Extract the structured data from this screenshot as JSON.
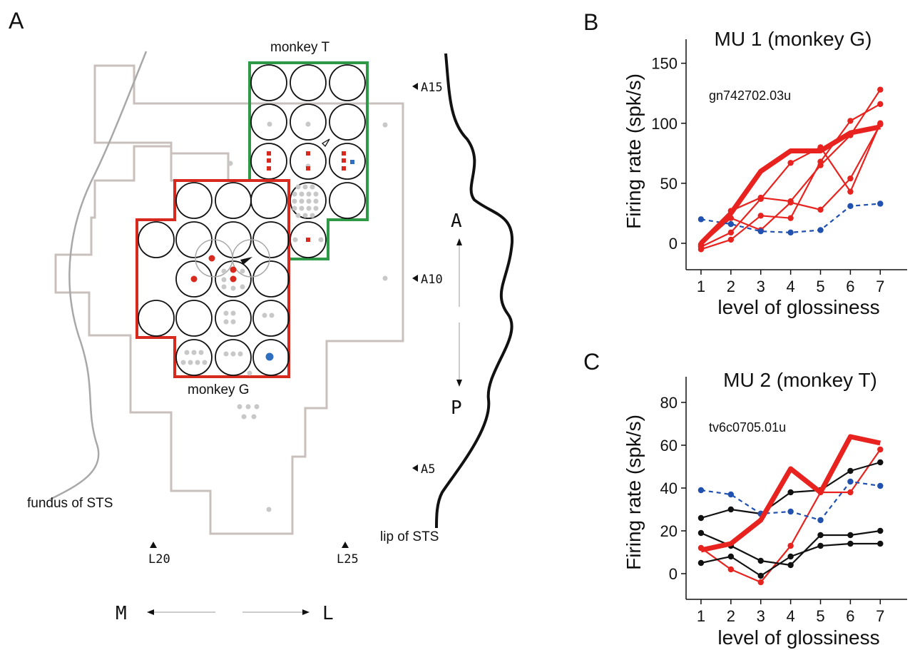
{
  "panels": {
    "a": "A",
    "b": "B",
    "c": "C"
  },
  "panel_a": {
    "monkey_t_label": "monkey T",
    "monkey_g_label": "monkey G",
    "fundus_label": "fundus of STS",
    "lip_label": "lip of STS",
    "ap_labels": [
      "A15",
      "A10",
      "A5"
    ],
    "ml_labels": [
      "L20",
      "L25"
    ],
    "dir_a": "A",
    "dir_p": "P",
    "dir_m": "M",
    "dir_l": "L",
    "colors": {
      "monkey_t_outline": "#2e9a47",
      "monkey_g_outline": "#d8291f",
      "chamber_outline": "#c9c0bd",
      "selective_site": "#d8291f",
      "nonselective_site": "#2e6fc0",
      "other_site": "#c8c8c8"
    }
  },
  "chart_data": [
    {
      "type": "line",
      "title": "MU 1 (monkey G)",
      "annotation": "gn742702.03u",
      "xlabel": "level of glossiness",
      "ylabel": "Firing rate (spk/s)",
      "x": [
        1,
        2,
        3,
        4,
        5,
        6,
        7
      ],
      "xticks": [
        "1",
        "2",
        "3",
        "4",
        "5",
        "6",
        "7"
      ],
      "yticks": [
        "0",
        "50",
        "100",
        "150"
      ],
      "ylim": [
        -22,
        170
      ],
      "series": [
        {
          "role": "mean",
          "color": "#e8231f",
          "style": "thick-solid",
          "values": [
            0,
            25,
            60,
            77,
            77,
            92,
            97
          ]
        },
        {
          "role": "stimulus",
          "color": "#e8231f",
          "style": "solid",
          "values": [
            -2,
            27,
            38,
            35,
            65,
            90,
            128
          ]
        },
        {
          "role": "stimulus",
          "color": "#e8231f",
          "style": "solid",
          "values": [
            -5,
            3,
            23,
            21,
            68,
            102,
            116
          ]
        },
        {
          "role": "stimulus",
          "color": "#e8231f",
          "style": "solid",
          "values": [
            -3,
            9,
            37,
            67,
            80,
            43,
            100
          ]
        },
        {
          "role": "stimulus",
          "color": "#e8231f",
          "style": "solid",
          "values": [
            -1,
            21,
            11,
            34,
            28,
            54,
            99
          ]
        },
        {
          "role": "matte",
          "color": "#2050b0",
          "style": "dashed",
          "values": [
            20,
            16,
            10,
            9,
            11,
            31,
            33
          ]
        }
      ]
    },
    {
      "type": "line",
      "title": "MU 2 (monkey T)",
      "annotation": "tv6c0705.01u",
      "xlabel": "level of glossiness",
      "ylabel": "Firing rate (spk/s)",
      "x": [
        1,
        2,
        3,
        4,
        5,
        6,
        7
      ],
      "xticks": [
        "1",
        "2",
        "3",
        "4",
        "5",
        "6",
        "7"
      ],
      "yticks": [
        "0",
        "20",
        "40",
        "60",
        "80"
      ],
      "ylim": [
        -12,
        92
      ],
      "series": [
        {
          "role": "mean",
          "color": "#e8231f",
          "style": "thick-solid",
          "values": [
            11,
            14,
            25,
            49,
            38,
            64,
            61
          ]
        },
        {
          "role": "stimulus",
          "color": "#e8231f",
          "style": "solid",
          "values": [
            12,
            2,
            -4,
            13,
            38,
            38,
            58
          ]
        },
        {
          "role": "stimulus",
          "color": "#111111",
          "style": "solid",
          "values": [
            26,
            30,
            28,
            38,
            39,
            48,
            52
          ]
        },
        {
          "role": "stimulus",
          "color": "#111111",
          "style": "solid",
          "values": [
            19,
            13,
            6,
            4,
            18,
            18,
            20
          ]
        },
        {
          "role": "stimulus",
          "color": "#111111",
          "style": "solid",
          "values": [
            5,
            8,
            -1,
            8,
            13,
            14,
            14
          ]
        },
        {
          "role": "matte",
          "color": "#2050b0",
          "style": "dashed",
          "values": [
            39,
            37,
            28,
            29,
            25,
            43,
            41
          ]
        }
      ]
    }
  ]
}
